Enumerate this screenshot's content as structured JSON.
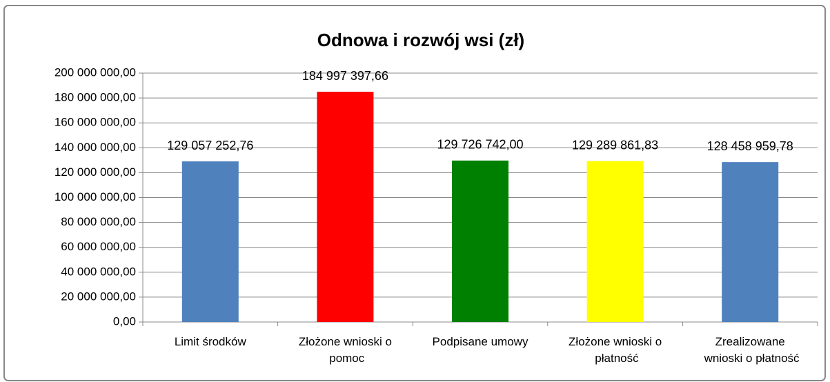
{
  "chart_data": {
    "type": "bar",
    "title": "Odnowa i rozwój wsi  (zł)",
    "categories": [
      "Limit środków",
      "Złożone wnioski o pomoc",
      "Podpisane umowy",
      "Złożone wnioski o płatność",
      "Zrealizowane wnioski o płatność"
    ],
    "values": [
      129057252.76,
      184997397.66,
      129726742.0,
      129289861.83,
      128458959.78
    ],
    "value_labels": [
      "129 057 252,76",
      "184 997 397,66",
      "129 726 742,00",
      "129 289 861,83",
      "128 458 959,78"
    ],
    "colors": [
      "#4f81bd",
      "#ff0000",
      "#008000",
      "#ffff00",
      "#4f81bd"
    ],
    "ylim": [
      0,
      200000000
    ],
    "yticks": [
      {
        "value": 0,
        "label": "0,00"
      },
      {
        "value": 20000000,
        "label": "20 000 000,00"
      },
      {
        "value": 40000000,
        "label": "40 000 000,00"
      },
      {
        "value": 60000000,
        "label": "60 000 000,00"
      },
      {
        "value": 80000000,
        "label": "80 000 000,00"
      },
      {
        "value": 100000000,
        "label": "100 000 000,00"
      },
      {
        "value": 120000000,
        "label": "120 000 000,00"
      },
      {
        "value": 140000000,
        "label": "140 000 000,00"
      },
      {
        "value": 160000000,
        "label": "160 000 000,00"
      },
      {
        "value": 180000000,
        "label": "180 000 000,00"
      },
      {
        "value": 200000000,
        "label": "200 000 000,00"
      }
    ],
    "grid": true
  }
}
